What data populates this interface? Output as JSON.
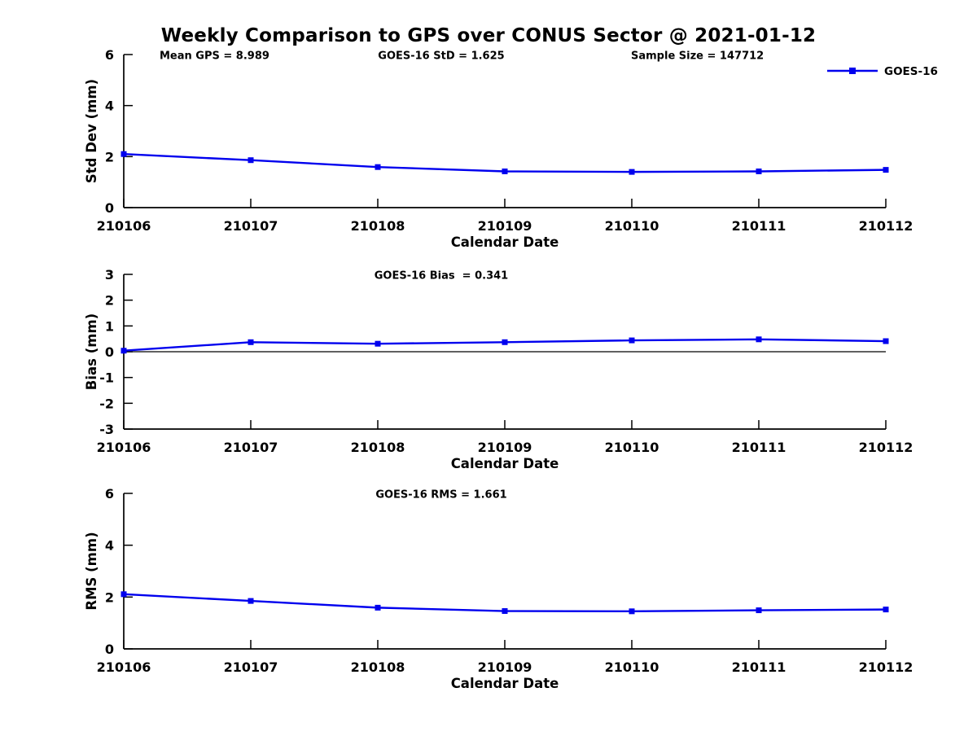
{
  "figure": {
    "title": "Weekly Comparison to GPS over CONUS Sector @ 2021-01-12",
    "background_color": "#ffffff",
    "axis_color": "#000000",
    "series_color": "#0000ee",
    "legend_label": "GOES-16"
  },
  "chart_data": [
    {
      "type": "line",
      "name": "stddev-subplot",
      "ylabel": "Std Dev (mm)",
      "xlabel": "Calendar Date",
      "categories": [
        "210106",
        "210107",
        "210108",
        "210109",
        "210110",
        "210111",
        "210112"
      ],
      "series": [
        {
          "name": "GOES-16",
          "color": "#0000ee",
          "marker": "square",
          "values": [
            2.1,
            1.86,
            1.59,
            1.42,
            1.4,
            1.42,
            1.48
          ]
        }
      ],
      "ylim": [
        0,
        6
      ],
      "yticks": [
        "0",
        "2",
        "4",
        "6"
      ],
      "grid": false,
      "zero_line": false,
      "annotations": {
        "left": "Mean GPS = 8.989",
        "center": "GOES-16 StD = 1.625",
        "right": "Sample Size = 147712"
      },
      "legend": {
        "visible": true,
        "label": "GOES-16",
        "position": "top-right"
      }
    },
    {
      "type": "line",
      "name": "bias-subplot",
      "ylabel": "Bias (mm)",
      "xlabel": "Calendar Date",
      "categories": [
        "210106",
        "210107",
        "210108",
        "210109",
        "210110",
        "210111",
        "210112"
      ],
      "series": [
        {
          "name": "GOES-16",
          "color": "#0000ee",
          "marker": "square",
          "values": [
            0.04,
            0.37,
            0.31,
            0.37,
            0.44,
            0.48,
            0.41
          ]
        }
      ],
      "ylim": [
        -3,
        3
      ],
      "yticks": [
        "-3",
        "-2",
        "-1",
        "0",
        "1",
        "2",
        "3"
      ],
      "grid": false,
      "zero_line": true,
      "annotations": {
        "center": "GOES-16 Bias  = 0.341"
      },
      "legend": {
        "visible": false
      }
    },
    {
      "type": "line",
      "name": "rms-subplot",
      "ylabel": "RMS (mm)",
      "xlabel": "Calendar Date",
      "categories": [
        "210106",
        "210107",
        "210108",
        "210109",
        "210110",
        "210111",
        "210112"
      ],
      "series": [
        {
          "name": "GOES-16",
          "color": "#0000ee",
          "marker": "square",
          "values": [
            2.11,
            1.85,
            1.59,
            1.46,
            1.45,
            1.49,
            1.52
          ]
        }
      ],
      "ylim": [
        0,
        6
      ],
      "yticks": [
        "0",
        "2",
        "4",
        "6"
      ],
      "grid": false,
      "zero_line": false,
      "annotations": {
        "center": "GOES-16 RMS = 1.661"
      },
      "legend": {
        "visible": false
      }
    }
  ]
}
